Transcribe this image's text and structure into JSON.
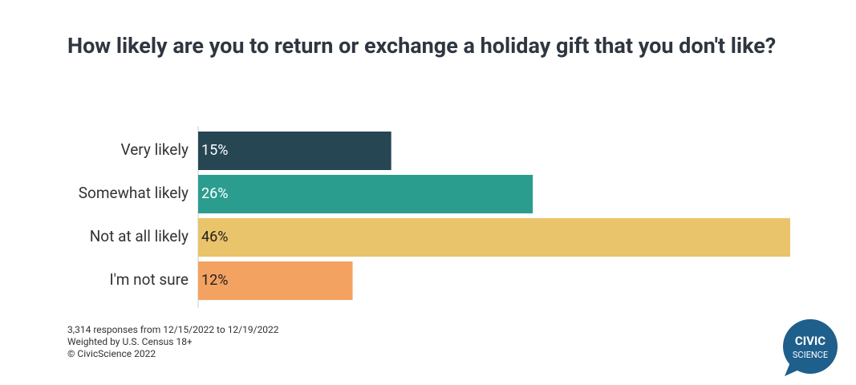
{
  "chart_data": {
    "type": "bar",
    "orientation": "horizontal",
    "title": "How likely are you to return or exchange a holiday gift that you don't like?",
    "categories": [
      "Very likely",
      "Somewhat likely",
      "Not at all likely",
      "I'm not sure"
    ],
    "values": [
      15,
      26,
      46,
      12
    ],
    "value_labels": [
      "15%",
      "26%",
      "46%",
      "12%"
    ],
    "colors": [
      "#264653",
      "#2a9d8f",
      "#e9c46a",
      "#f4a261"
    ],
    "footnotes": [
      "3,314 responses from 12/15/2022 to 12/19/2022",
      "Weighted by U.S. Census 18+",
      "© CivicScience 2022"
    ],
    "logo": [
      "CIVIC",
      "SCIENCE"
    ]
  }
}
